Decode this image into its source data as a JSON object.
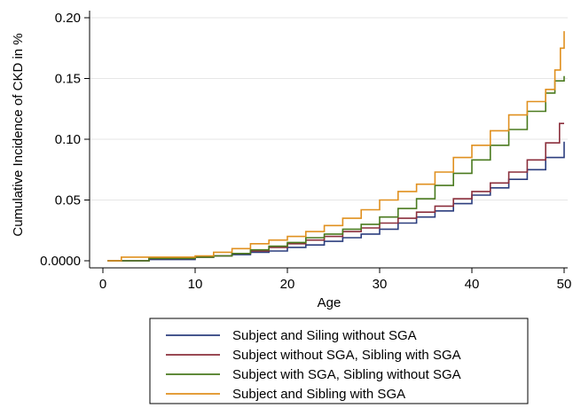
{
  "chart_data": {
    "type": "line",
    "step": true,
    "xlabel": "Age",
    "ylabel": "Cumulative Incidence of CKD in %",
    "xlim": [
      0,
      50
    ],
    "ylim": [
      0,
      0.2
    ],
    "x_ticks": [
      0,
      10,
      20,
      30,
      40,
      50
    ],
    "x_tick_labels": [
      "0",
      "10",
      "20",
      "30",
      "40",
      "50"
    ],
    "y_ticks": [
      0,
      0.05,
      0.1,
      0.15,
      0.2
    ],
    "y_tick_labels": [
      "0.0000",
      "0.05",
      "0.10",
      "0.15",
      "0.20"
    ],
    "grid": "horizontal",
    "legend_position": "bottom",
    "series": [
      {
        "name": "Subject and Siling without SGA",
        "color": "#2c3e7e",
        "x": [
          0.5,
          5,
          10,
          12,
          14,
          16,
          18,
          20,
          22,
          24,
          26,
          28,
          30,
          32,
          34,
          36,
          38,
          40,
          42,
          44,
          46,
          48,
          50
        ],
        "y": [
          0,
          0.001,
          0.003,
          0.004,
          0.005,
          0.007,
          0.008,
          0.011,
          0.013,
          0.016,
          0.019,
          0.022,
          0.026,
          0.031,
          0.036,
          0.041,
          0.047,
          0.054,
          0.06,
          0.067,
          0.075,
          0.085,
          0.098
        ]
      },
      {
        "name": "Subject without SGA, Sibling with SGA",
        "color": "#8b2f3c",
        "x": [
          0.5,
          5,
          10,
          12,
          14,
          16,
          18,
          20,
          22,
          24,
          26,
          28,
          30,
          32,
          34,
          36,
          38,
          40,
          42,
          44,
          46,
          48,
          49.5,
          50
        ],
        "y": [
          0,
          0.002,
          0.003,
          0.004,
          0.006,
          0.008,
          0.011,
          0.014,
          0.017,
          0.02,
          0.024,
          0.027,
          0.031,
          0.035,
          0.04,
          0.045,
          0.051,
          0.057,
          0.064,
          0.073,
          0.083,
          0.097,
          0.113,
          0.113
        ]
      },
      {
        "name": "Subject with SGA, Sibling without SGA",
        "color": "#4a7a1f",
        "x": [
          0.5,
          5,
          10,
          12,
          14,
          16,
          18,
          20,
          22,
          24,
          26,
          28,
          30,
          32,
          34,
          36,
          38,
          40,
          42,
          44,
          46,
          48,
          49,
          50
        ],
        "y": [
          0,
          0.002,
          0.003,
          0.004,
          0.006,
          0.009,
          0.012,
          0.015,
          0.019,
          0.022,
          0.026,
          0.03,
          0.036,
          0.043,
          0.051,
          0.062,
          0.072,
          0.083,
          0.095,
          0.108,
          0.123,
          0.138,
          0.148,
          0.152
        ]
      },
      {
        "name": "Subject and Sibling with SGA",
        "color": "#e0901f",
        "x": [
          0.5,
          2,
          5,
          10,
          12,
          14,
          16,
          18,
          20,
          22,
          24,
          26,
          28,
          30,
          32,
          34,
          36,
          38,
          40,
          42,
          44,
          46,
          48,
          49,
          49.6,
          50
        ],
        "y": [
          0,
          0.003,
          0.003,
          0.004,
          0.007,
          0.01,
          0.014,
          0.017,
          0.02,
          0.024,
          0.029,
          0.035,
          0.042,
          0.05,
          0.057,
          0.063,
          0.073,
          0.085,
          0.095,
          0.107,
          0.12,
          0.131,
          0.141,
          0.157,
          0.175,
          0.189
        ]
      }
    ]
  }
}
